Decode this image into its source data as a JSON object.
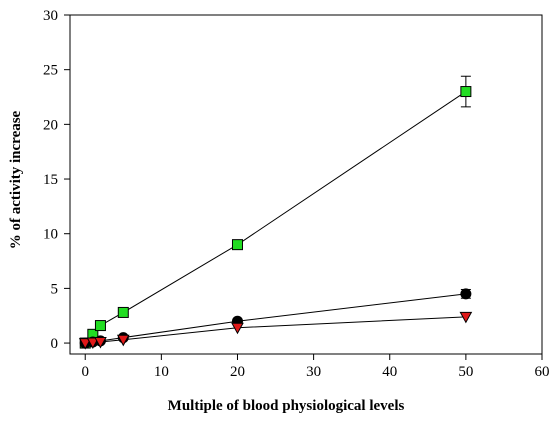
{
  "chart_data": {
    "type": "scatter",
    "title": "",
    "xlabel": "Multiple of blood physiological levels",
    "ylabel": "% of activity increase",
    "xlim": [
      -2,
      60
    ],
    "ylim": [
      -1,
      30
    ],
    "xticks": [
      0,
      10,
      20,
      30,
      40,
      50,
      60
    ],
    "yticks": [
      0,
      5,
      10,
      15,
      20,
      25,
      30
    ],
    "grid": false,
    "legend": "none",
    "series": [
      {
        "marker": "square",
        "color": "#22dd22",
        "x": [
          0,
          1,
          2,
          5,
          20,
          50
        ],
        "y": [
          0,
          0.8,
          1.6,
          2.8,
          9.0,
          23.0
        ],
        "err": [
          0,
          0,
          0,
          0,
          0.3,
          1.4
        ]
      },
      {
        "marker": "circle",
        "color": "#000000",
        "x": [
          0,
          1,
          2,
          5,
          20,
          50
        ],
        "y": [
          0,
          0.1,
          0.2,
          0.5,
          2.0,
          4.5
        ],
        "err": [
          0,
          0,
          0,
          0,
          0,
          0.4
        ]
      },
      {
        "marker": "triangle-down",
        "color": "#e01818",
        "x": [
          0,
          1,
          2,
          5,
          20,
          50
        ],
        "y": [
          0,
          0.05,
          0.1,
          0.3,
          1.4,
          2.4
        ],
        "err": [
          0,
          0,
          0,
          0,
          0,
          0
        ]
      }
    ]
  }
}
